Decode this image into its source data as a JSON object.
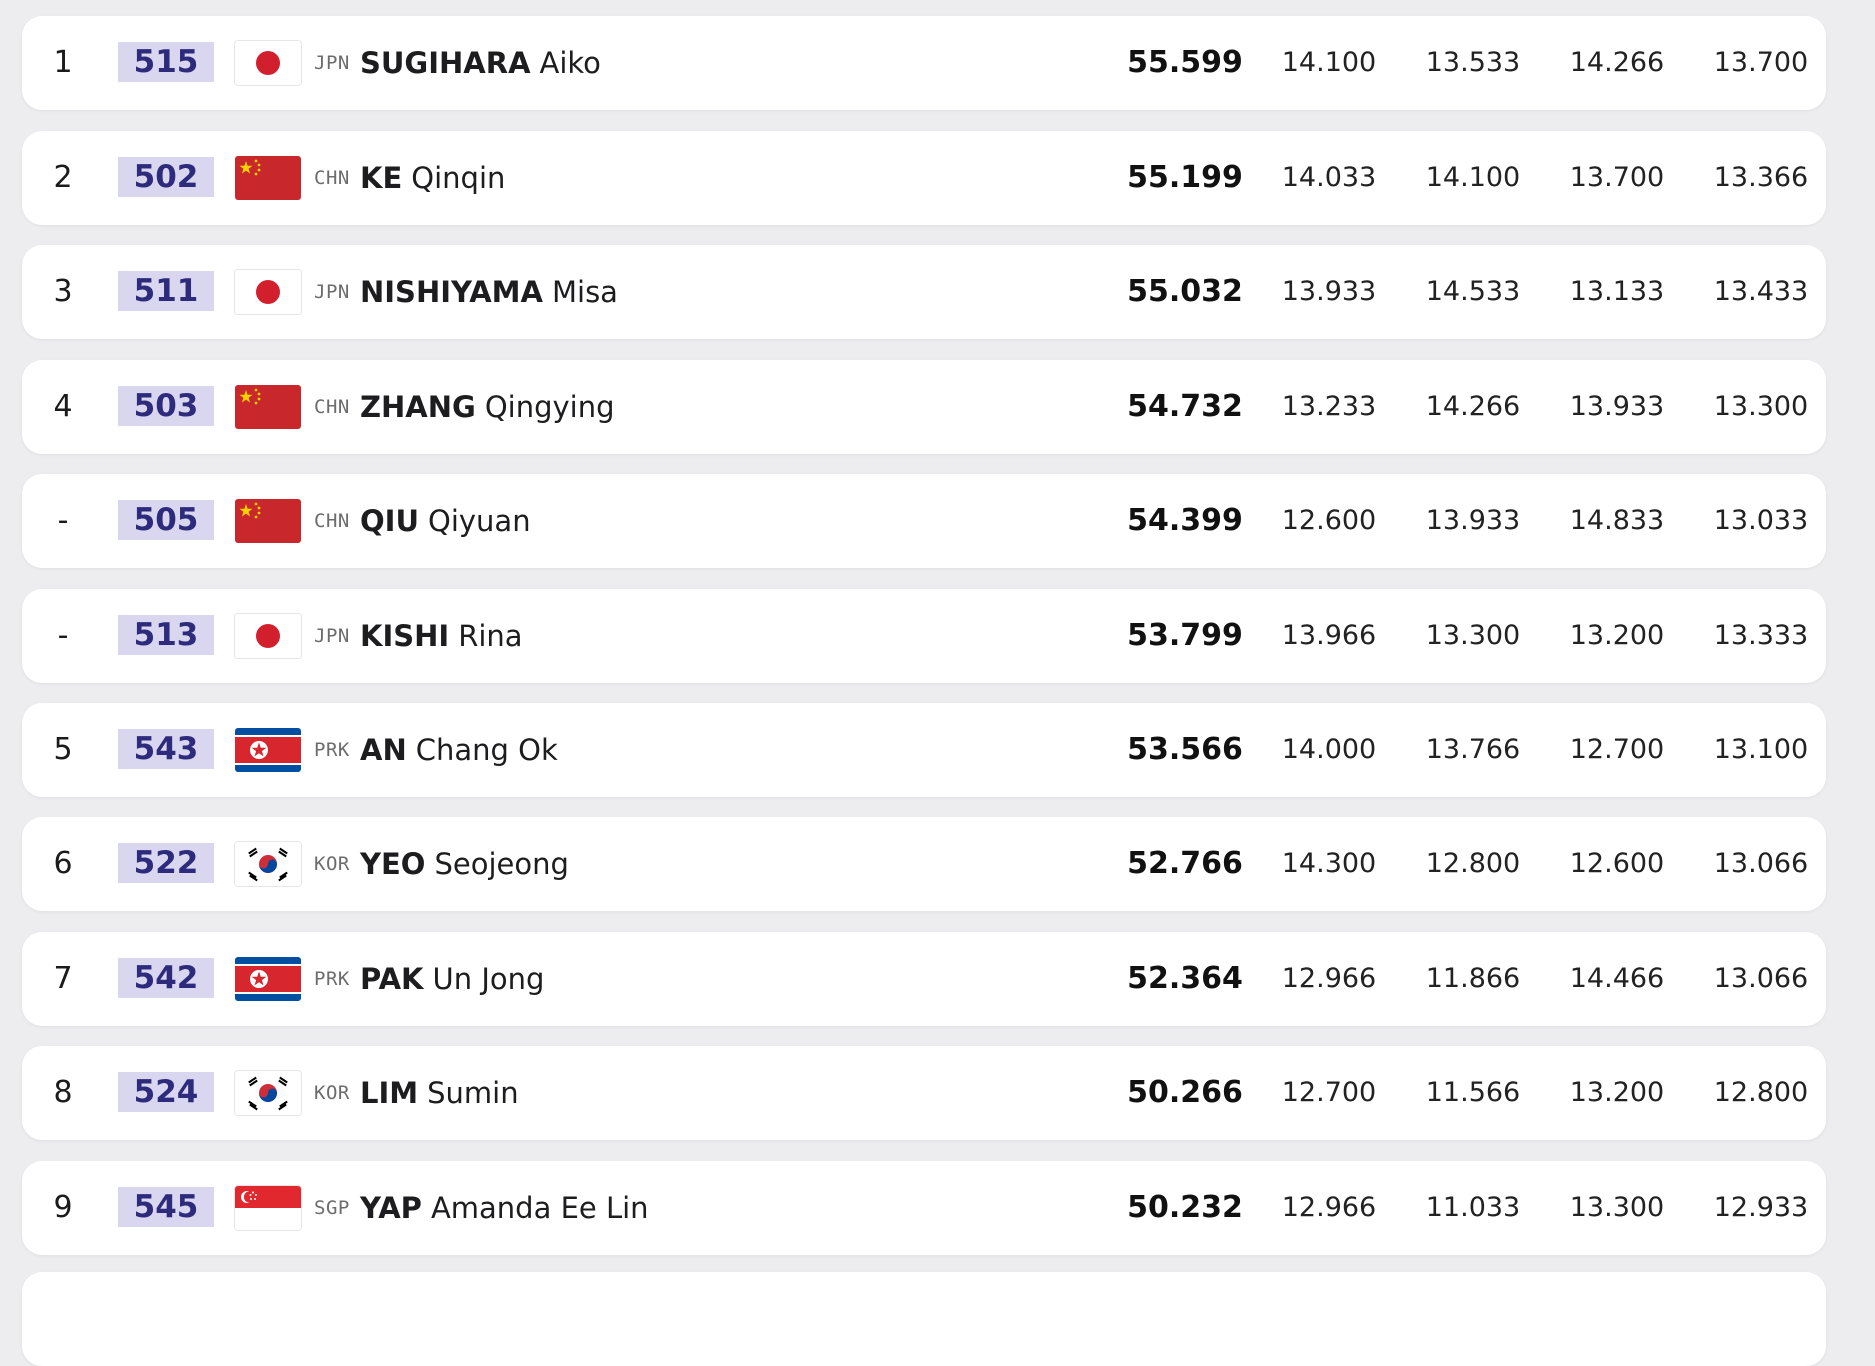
{
  "rows": [
    {
      "rank": "1",
      "bib": "515",
      "noc": "JPN",
      "flag": "jpn",
      "surname": "SUGIHARA",
      "given": "Aiko",
      "total": "55.599",
      "s1": "14.100",
      "s2": "13.533",
      "s3": "14.266",
      "s4": "13.700"
    },
    {
      "rank": "2",
      "bib": "502",
      "noc": "CHN",
      "flag": "chn",
      "surname": "KE",
      "given": "Qinqin",
      "total": "55.199",
      "s1": "14.033",
      "s2": "14.100",
      "s3": "13.700",
      "s4": "13.366"
    },
    {
      "rank": "3",
      "bib": "511",
      "noc": "JPN",
      "flag": "jpn",
      "surname": "NISHIYAMA",
      "given": "Misa",
      "total": "55.032",
      "s1": "13.933",
      "s2": "14.533",
      "s3": "13.133",
      "s4": "13.433"
    },
    {
      "rank": "4",
      "bib": "503",
      "noc": "CHN",
      "flag": "chn",
      "surname": "ZHANG",
      "given": "Qingying",
      "total": "54.732",
      "s1": "13.233",
      "s2": "14.266",
      "s3": "13.933",
      "s4": "13.300"
    },
    {
      "rank": "-",
      "bib": "505",
      "noc": "CHN",
      "flag": "chn",
      "surname": "QIU",
      "given": "Qiyuan",
      "total": "54.399",
      "s1": "12.600",
      "s2": "13.933",
      "s3": "14.833",
      "s4": "13.033"
    },
    {
      "rank": "-",
      "bib": "513",
      "noc": "JPN",
      "flag": "jpn",
      "surname": "KISHI",
      "given": "Rina",
      "total": "53.799",
      "s1": "13.966",
      "s2": "13.300",
      "s3": "13.200",
      "s4": "13.333"
    },
    {
      "rank": "5",
      "bib": "543",
      "noc": "PRK",
      "flag": "prk",
      "surname": "AN",
      "given": "Chang Ok",
      "total": "53.566",
      "s1": "14.000",
      "s2": "13.766",
      "s3": "12.700",
      "s4": "13.100"
    },
    {
      "rank": "6",
      "bib": "522",
      "noc": "KOR",
      "flag": "kor",
      "surname": "YEO",
      "given": "Seojeong",
      "total": "52.766",
      "s1": "14.300",
      "s2": "12.800",
      "s3": "12.600",
      "s4": "13.066"
    },
    {
      "rank": "7",
      "bib": "542",
      "noc": "PRK",
      "flag": "prk",
      "surname": "PAK",
      "given": "Un Jong",
      "total": "52.364",
      "s1": "12.966",
      "s2": "11.866",
      "s3": "14.466",
      "s4": "13.066"
    },
    {
      "rank": "8",
      "bib": "524",
      "noc": "KOR",
      "flag": "kor",
      "surname": "LIM",
      "given": "Sumin",
      "total": "50.266",
      "s1": "12.700",
      "s2": "11.566",
      "s3": "13.200",
      "s4": "12.800"
    },
    {
      "rank": "9",
      "bib": "545",
      "noc": "SGP",
      "flag": "sgp",
      "surname": "YAP",
      "given": "Amanda Ee Lin",
      "total": "50.232",
      "s1": "12.966",
      "s2": "11.033",
      "s3": "13.300",
      "s4": "12.933"
    }
  ],
  "colors": {
    "bib_bg": "#d9d7f0",
    "bib_text": "#2e2a7c",
    "row_bg": "#ffffff",
    "page_bg": "#ededef"
  }
}
